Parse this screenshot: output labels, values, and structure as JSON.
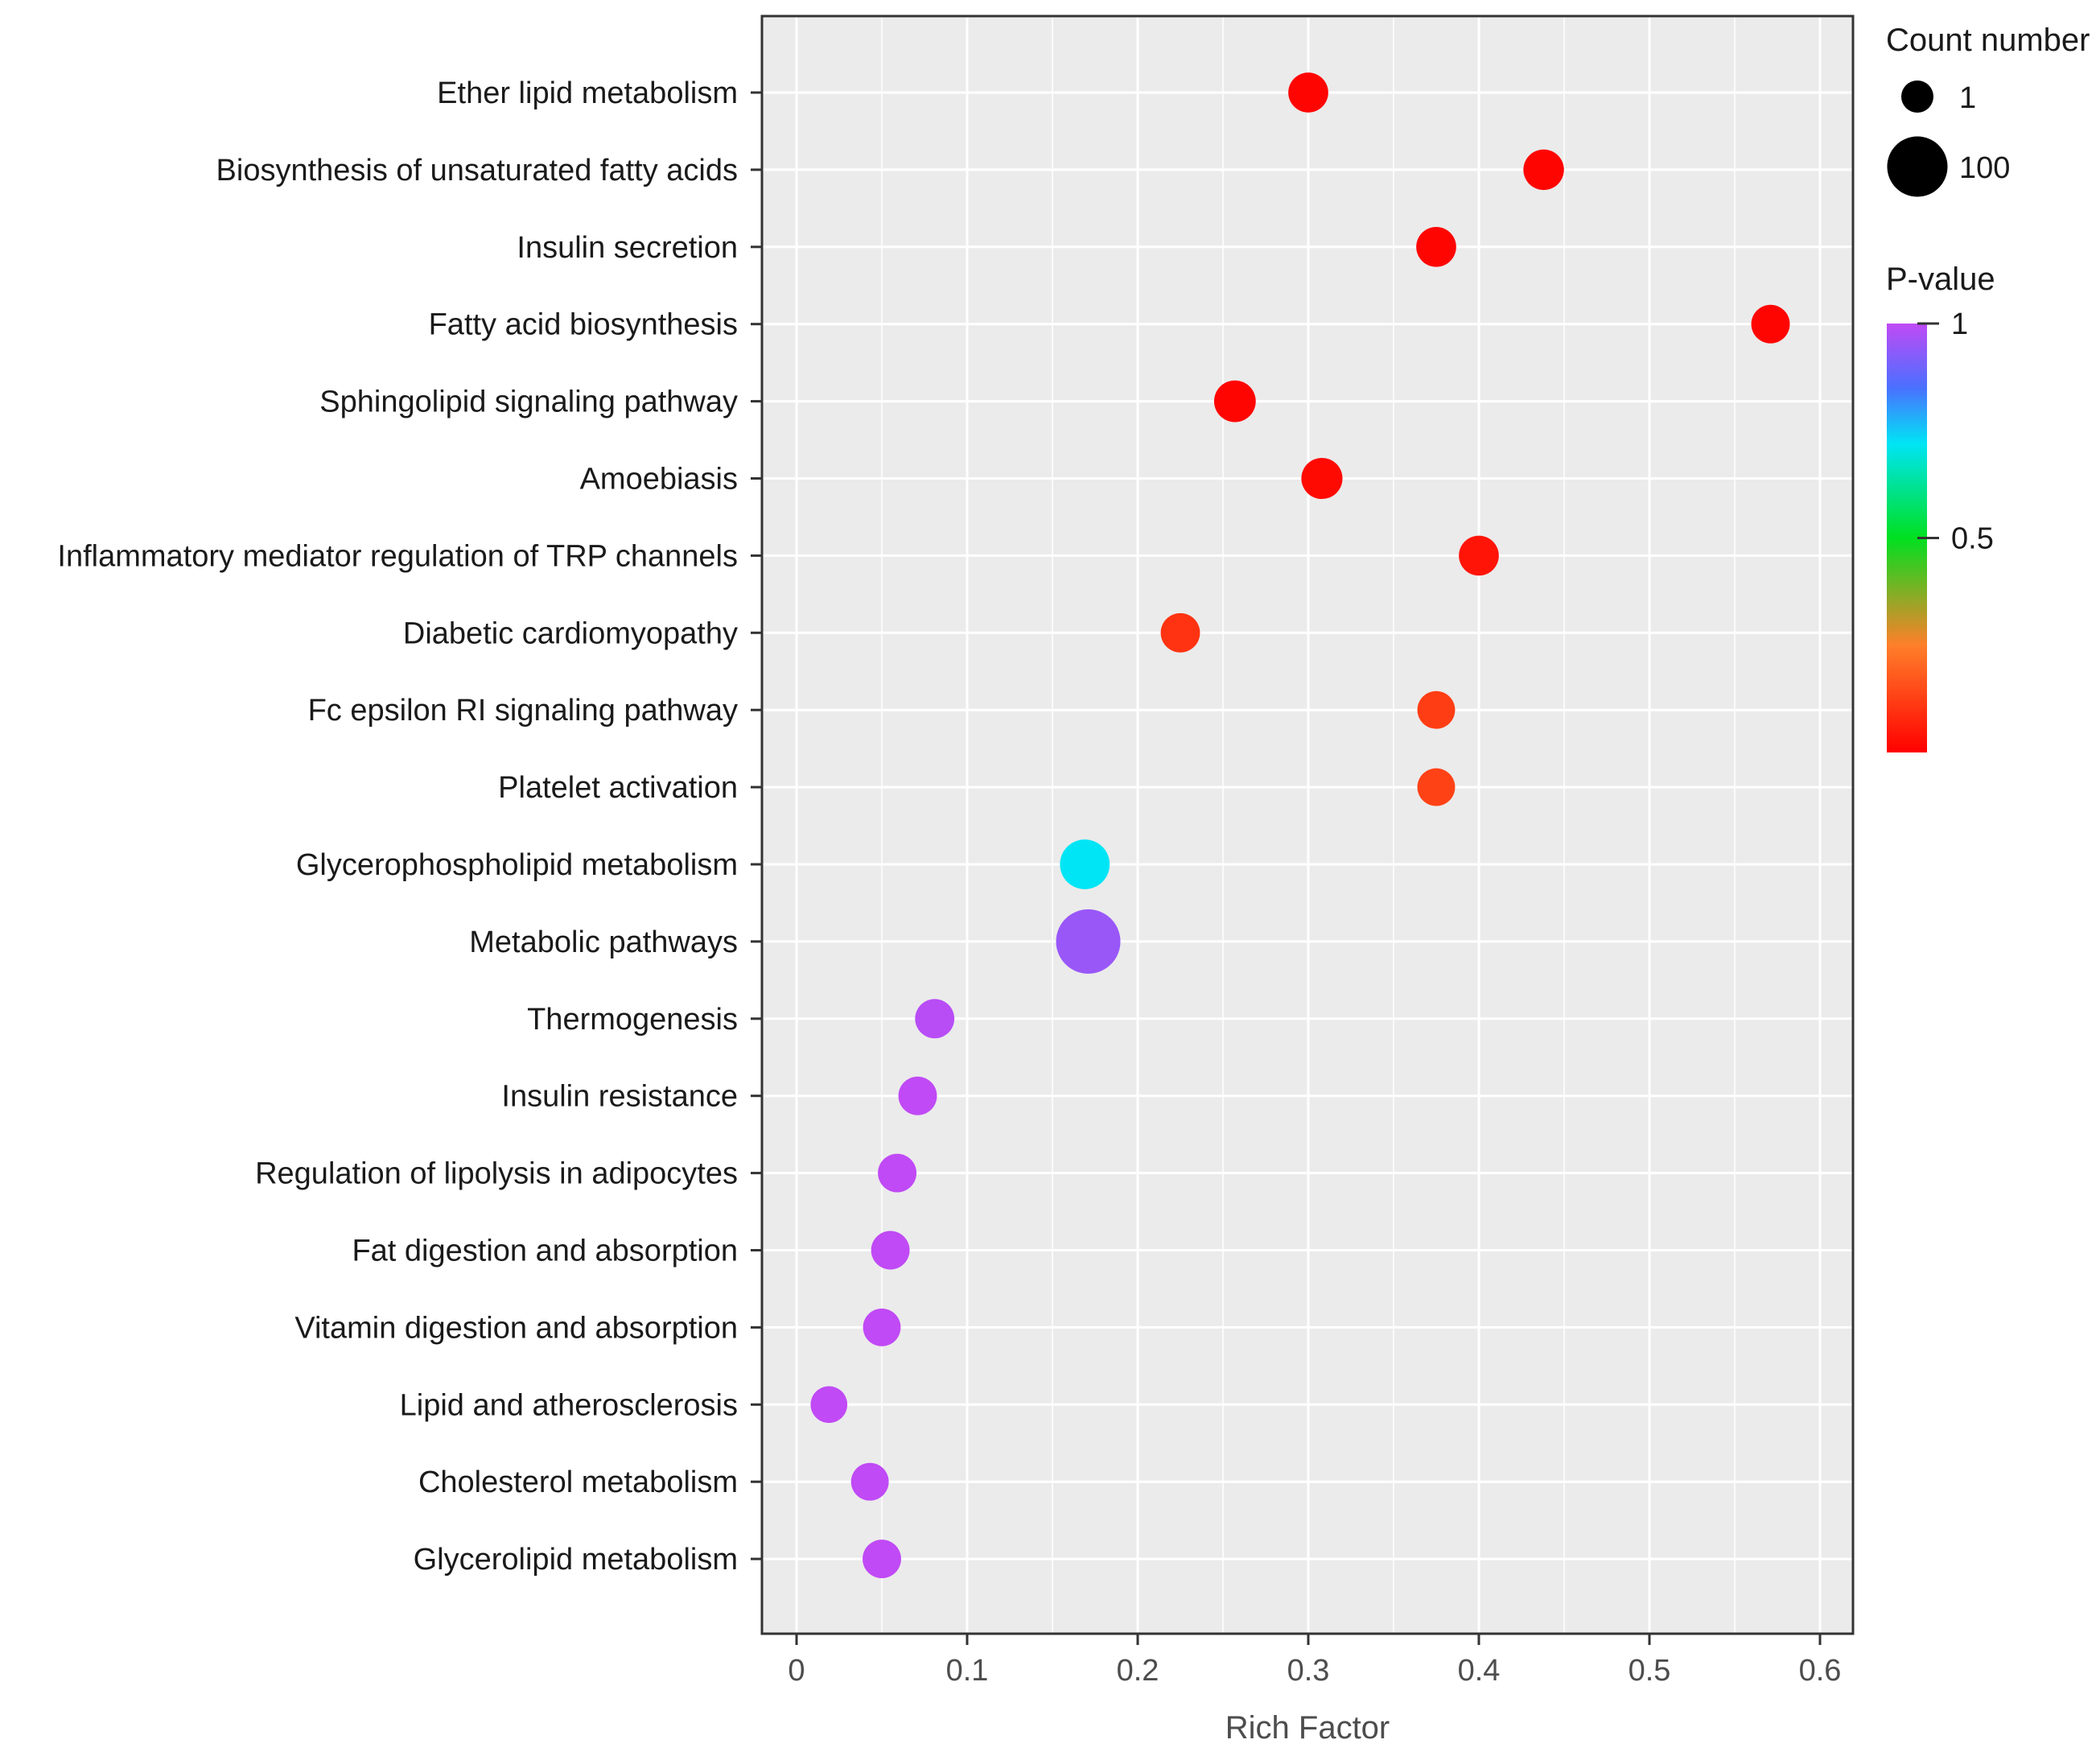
{
  "chart_data": {
    "type": "scatter",
    "subtype": "bubble",
    "title": "",
    "xlabel": "Rich Factor",
    "ylabel": "",
    "xlim": [
      -0.02,
      0.62
    ],
    "xticks": [
      0,
      0.1,
      0.2,
      0.3,
      0.4,
      0.5,
      0.6
    ],
    "xtick_labels": [
      "0",
      "0.1",
      "0.2",
      "0.3",
      "0.4",
      "0.5",
      "0.6"
    ],
    "grid": true,
    "categories": [
      "Ether lipid metabolism",
      "Biosynthesis of unsaturated fatty acids",
      "Insulin secretion",
      "Fatty acid biosynthesis",
      "Sphingolipid signaling pathway",
      "Amoebiasis",
      "Inflammatory mediator regulation of TRP channels",
      "Diabetic cardiomyopathy",
      "Fc epsilon RI signaling pathway",
      "Platelet activation",
      "Glycerophospholipid metabolism",
      "Metabolic pathways",
      "Thermogenesis",
      "Insulin resistance",
      "Regulation of lipolysis in adipocytes",
      "Fat digestion and absorption",
      "Vitamin digestion and absorption",
      "Lipid and atherosclerosis",
      "Cholesterol metabolism",
      "Glycerolipid metabolism"
    ],
    "rich_factor": [
      0.3,
      0.438,
      0.375,
      0.571,
      0.257,
      0.308,
      0.4,
      0.225,
      0.375,
      0.375,
      0.169,
      0.171,
      0.081,
      0.071,
      0.059,
      0.055,
      0.05,
      0.019,
      0.043,
      0.05
    ],
    "count": [
      6,
      7,
      6,
      4,
      9,
      8,
      6,
      5,
      3,
      3,
      31,
      105,
      5,
      4,
      4,
      4,
      3,
      2,
      3,
      4
    ],
    "p_value": [
      0.01,
      0.01,
      0.01,
      0.01,
      0.01,
      0.02,
      0.04,
      0.1,
      0.12,
      0.13,
      0.72,
      0.95,
      0.99,
      1.0,
      1.0,
      1.0,
      1.0,
      1.0,
      1.0,
      1.0
    ],
    "legend": {
      "size_title": "Count number",
      "size_entries": [
        {
          "label": "1",
          "value": 1
        },
        {
          "label": "100",
          "value": 100
        }
      ],
      "color_title": "P-value",
      "color_ticks": [
        {
          "label": "1",
          "value": 1
        },
        {
          "label": "0.5",
          "value": 0.5
        }
      ],
      "color_scale": [
        {
          "p": 0.0,
          "color": "#ff0000"
        },
        {
          "p": 0.25,
          "color": "#ff7f2a"
        },
        {
          "p": 0.5,
          "color": "#00e020"
        },
        {
          "p": 0.72,
          "color": "#00e5f5"
        },
        {
          "p": 0.85,
          "color": "#4a70ff"
        },
        {
          "p": 1.0,
          "color": "#c04af5"
        }
      ],
      "position": "right"
    },
    "colors": {
      "panel_background": "#ebebeb",
      "grid": "#ffffff",
      "panel_border": "#333333",
      "low_p": "#ff0000",
      "high_p": "#c04af5"
    }
  }
}
